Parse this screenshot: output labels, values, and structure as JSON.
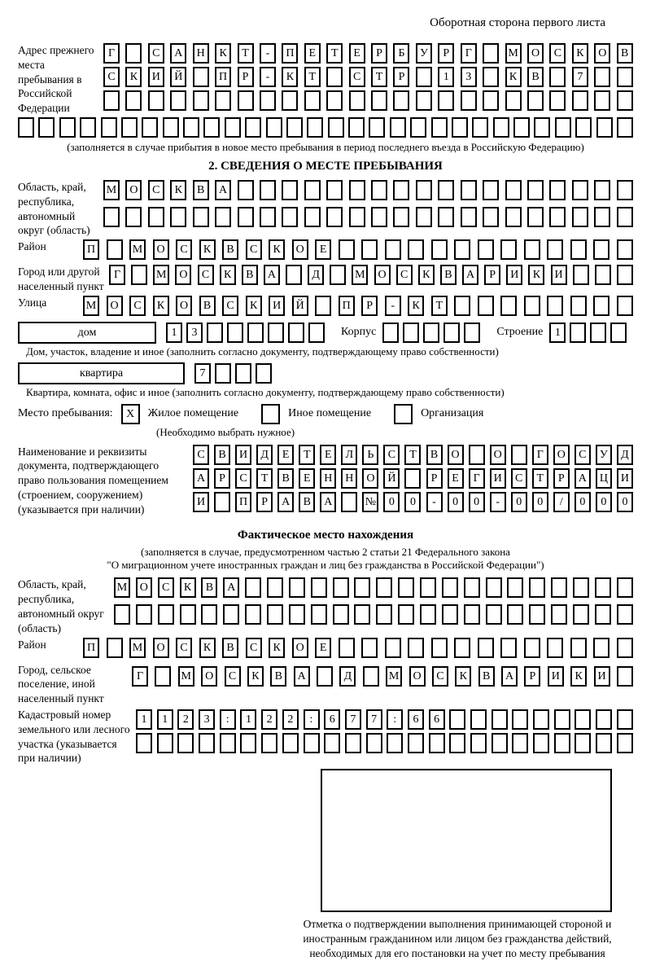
{
  "header": {
    "title": "Оборотная сторона первого листа"
  },
  "prev_address": {
    "label": "Адрес прежнего места пребывания в Российской Федерации",
    "row1": "Г САНКТ-ПЕТЕРБУРГ МОСКОВ",
    "row2": "СКИЙ ПР-КТ СТР 13 КВ 7",
    "row3": "",
    "row4": "",
    "note": "(заполняется в случае прибытия в новое место пребывания в период последнего въезда в Российскую Федерацию)"
  },
  "section2": {
    "title": "2. СВЕДЕНИЯ О МЕСТЕ ПРЕБЫВАНИЯ",
    "oblast": {
      "label": "Область, край, республика, автономный округ (область)",
      "row1": "МОСКВА",
      "row2": ""
    },
    "raion": {
      "label": "Район",
      "row": "П МОСКВСКОЕ"
    },
    "gorod": {
      "label": "Город или другой населенный пункт",
      "row": "Г МОСКВА Д МОСКВАРИКИ"
    },
    "ulitsa": {
      "label": "Улица",
      "row": "МОСКОВСКИЙ ПР-КТ"
    },
    "dom": {
      "label": "дом",
      "value": "13",
      "korpus_label": "Корпус",
      "korpus_value": "",
      "stroenie_label": "Строение",
      "stroenie_value": "1",
      "note": "Дом, участок, владение и иное (заполнить согласно документу, подтверждающему право собственности)"
    },
    "kvartira": {
      "label": "квартира",
      "value": "7",
      "note": "Квартира, комната, офис и иное (заполнить согласно документу, подтверждающему право собственности)"
    },
    "mesto": {
      "label": "Место пребывания:",
      "options": [
        {
          "label": "Жилое помещение",
          "mark": "X"
        },
        {
          "label": "Иное помещение",
          "mark": ""
        },
        {
          "label": "Организация",
          "mark": ""
        }
      ],
      "note": "(Необходимо выбрать нужное)"
    },
    "document": {
      "label": "Наименование и реквизиты документа, подтверждающего право пользования помещением (строением, сооружением) (указывается при наличии)",
      "row1": "СВИДЕТЕЛЬСТВО О ГОСУД",
      "row2": "АРСТВЕННОЙ РЕГИСТРАЦИ",
      "row3": "И ПРАВА №00-00-00/000"
    }
  },
  "factual": {
    "title": "Фактическое место нахождения",
    "note1": "(заполняется в случае, предусмотренном частью 2 статьи 21 Федерального закона",
    "note2": "\"О миграционном учете иностранных граждан и лиц без гражданства в Российской Федерации\")",
    "oblast": {
      "label": "Область, край, республика, автономный округ (область)",
      "row1": "МОСКВА",
      "row2": ""
    },
    "raion": {
      "label": "Район",
      "row": "П МОСКВСКОЕ"
    },
    "gorod": {
      "label": "Город, сельское поселение, иной населенный пункт",
      "row": "Г МОСКВА Д МОСКВАРИКИ"
    },
    "kadastr": {
      "label": "Кадастровый номер земельного или лесного участка (указывается при наличии)",
      "row1": "1123:122:677:66",
      "row2": ""
    },
    "stamp_note": "Отметка о подтверждении выполнения принимающей стороной и иностранным гражданином или лицом без гражданства действий, необходимых для его постановки на учет по месту пребывания"
  }
}
